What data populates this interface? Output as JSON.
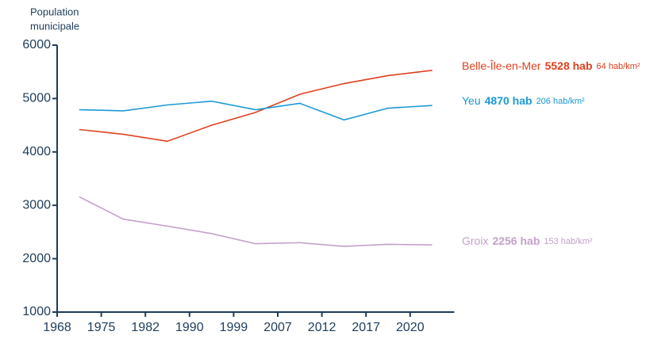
{
  "chart_data": {
    "type": "line",
    "ylabel_lines": [
      "Population",
      "municipale"
    ],
    "categories": [
      "1968",
      "1975",
      "1982",
      "1990",
      "1999",
      "2007",
      "2012",
      "2017",
      "2020"
    ],
    "ylim": [
      1000,
      6000
    ],
    "yticks": [
      1000,
      2000,
      3000,
      4000,
      5000,
      6000
    ],
    "series": [
      {
        "name": "Belle-Île-en-Mer",
        "color": "#e0401f",
        "end_label": "5528 hab",
        "density": "64 hab/km²",
        "values": [
          4420,
          4330,
          4200,
          4500,
          4740,
          5080,
          5280,
          5430,
          5528
        ]
      },
      {
        "name": "Yeu",
        "color": "#1a9ad6",
        "end_label": "4870 hab",
        "density": "206 hab/km²",
        "values": [
          4790,
          4770,
          4880,
          4950,
          4790,
          4910,
          4600,
          4820,
          4870
        ]
      },
      {
        "name": "Groix",
        "color": "#c3a0c8",
        "end_label": "2256 hab",
        "density": "153 hab/km²",
        "values": [
          3160,
          2740,
          2610,
          2470,
          2280,
          2300,
          2230,
          2270,
          2256
        ]
      }
    ]
  }
}
